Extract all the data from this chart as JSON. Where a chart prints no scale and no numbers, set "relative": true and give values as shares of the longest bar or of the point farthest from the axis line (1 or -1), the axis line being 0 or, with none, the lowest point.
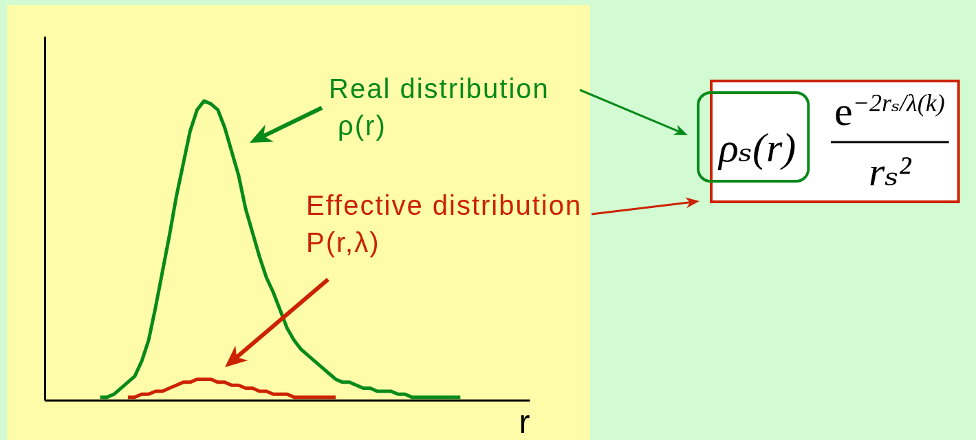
{
  "chart_data": {
    "type": "line",
    "xlabel": "r",
    "relative": true,
    "legend": "top right",
    "categories": [
      null,
      null,
      null,
      null,
      null,
      null,
      null,
      null,
      null,
      null,
      null,
      null,
      null,
      null,
      null,
      null,
      null,
      null,
      null,
      null,
      null,
      null,
      null,
      null,
      null,
      null,
      null,
      null,
      null,
      null,
      null,
      null,
      null,
      null,
      null,
      null,
      null,
      null,
      null,
      null,
      null,
      null,
      null,
      null,
      null,
      null,
      null,
      null,
      null,
      null,
      null,
      null,
      null,
      null,
      null,
      null,
      null,
      null,
      null,
      null,
      null,
      null,
      null,
      null,
      null,
      null,
      null,
      null,
      null,
      null,
      null
    ],
    "series": [
      {
        "name": "Real distribution ρ(r)",
        "color": "#078a1a",
        "values": [
          null,
          null,
          null,
          null,
          null,
          null,
          null,
          null,
          0.01,
          0.01,
          0.02,
          0.04,
          0.06,
          0.08,
          0.13,
          0.2,
          0.31,
          0.43,
          0.55,
          0.68,
          0.79,
          0.9,
          0.97,
          1,
          0.99,
          0.97,
          0.91,
          0.83,
          0.75,
          0.64,
          0.56,
          0.48,
          0.41,
          0.36,
          0.3,
          0.24,
          0.2,
          0.17,
          0.15,
          0.13,
          0.11,
          0.09,
          0.07,
          0.06,
          0.06,
          0.05,
          0.04,
          0.04,
          0.03,
          0.03,
          0.03,
          0.02,
          0.02,
          0.01,
          0.01,
          0.01,
          0.01,
          0.01,
          0.01,
          0.01,
          0.01,
          null,
          null,
          null,
          null,
          null,
          null,
          null,
          null,
          null,
          null
        ]
      },
      {
        "name": "Effective distribution P(r,λ)",
        "color": "#cc2200",
        "values": [
          null,
          null,
          null,
          null,
          null,
          null,
          null,
          null,
          null,
          null,
          null,
          null,
          0.01,
          0.01,
          0.02,
          0.02,
          0.03,
          0.03,
          0.04,
          0.05,
          0.06,
          0.06,
          0.07,
          0.07,
          0.07,
          0.06,
          0.06,
          0.05,
          0.05,
          0.04,
          0.04,
          0.03,
          0.03,
          0.02,
          0.02,
          0.02,
          0.01,
          0.01,
          0.01,
          0.01,
          0.01,
          0.01,
          0.01,
          null,
          null,
          null,
          null,
          null,
          null,
          null,
          null,
          null,
          null,
          null,
          null,
          null,
          null,
          null,
          null,
          null,
          null,
          null,
          null,
          null,
          null,
          null,
          null,
          null,
          null,
          null,
          null
        ]
      }
    ],
    "annotations": [
      "ρₛ(r)",
      "e$^{−2rₛ/λ(k)}$",
      "rₛ²"
    ]
  }
}
